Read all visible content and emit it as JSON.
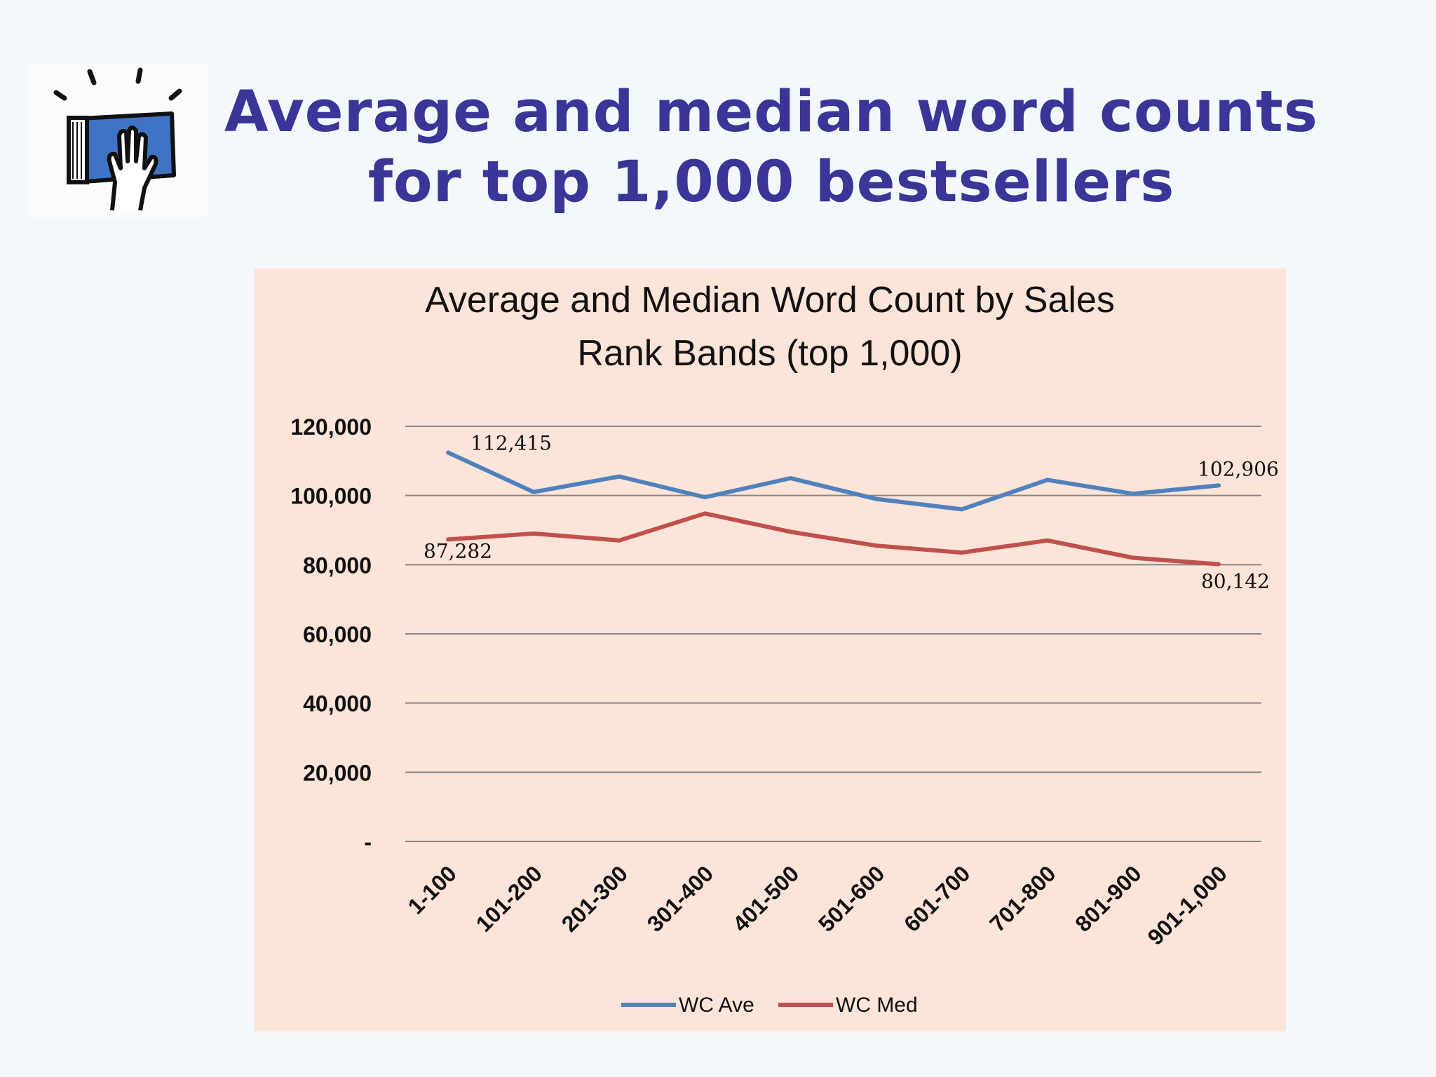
{
  "slide": {
    "title_line1": "Average and median word counts",
    "title_line2": "for top 1,000 bestsellers",
    "logo_icon": "book-with-hand-icon"
  },
  "colors": {
    "title": "#3a3596",
    "panel_bg": "#fde4d8",
    "series_ave": "#4f81bd",
    "series_med": "#c0504d",
    "gridline": "#868686"
  },
  "chart_data": {
    "type": "line",
    "title_line1": "Average and Median Word Count by Sales",
    "title_line2": "Rank Bands (top 1,000)",
    "categories": [
      "1-100",
      "101-200",
      "201-300",
      "301-400",
      "401-500",
      "501-600",
      "601-700",
      "701-800",
      "801-900",
      "901-1,000"
    ],
    "series": [
      {
        "name": "WC Ave",
        "color": "#4f81bd",
        "values": [
          112415,
          101000,
          105500,
          99500,
          105000,
          99000,
          96000,
          104500,
          100500,
          102906
        ]
      },
      {
        "name": "WC Med",
        "color": "#c0504d",
        "values": [
          87282,
          89000,
          87000,
          94800,
          89500,
          85500,
          83500,
          87000,
          82000,
          80142
        ]
      }
    ],
    "data_labels": [
      {
        "series": 0,
        "index": 0,
        "text": "112,415"
      },
      {
        "series": 0,
        "index": 9,
        "text": "102,906"
      },
      {
        "series": 1,
        "index": 0,
        "text": "87,282"
      },
      {
        "series": 1,
        "index": 9,
        "text": "80,142"
      }
    ],
    "y_ticks": [
      0,
      20000,
      40000,
      60000,
      80000,
      100000,
      120000
    ],
    "y_tick_labels": [
      "-",
      "20,000",
      "40,000",
      "60,000",
      "80,000",
      "100,000",
      "120,000"
    ],
    "ylim": [
      0,
      120000
    ],
    "grid": true,
    "legend_position": "bottom"
  }
}
